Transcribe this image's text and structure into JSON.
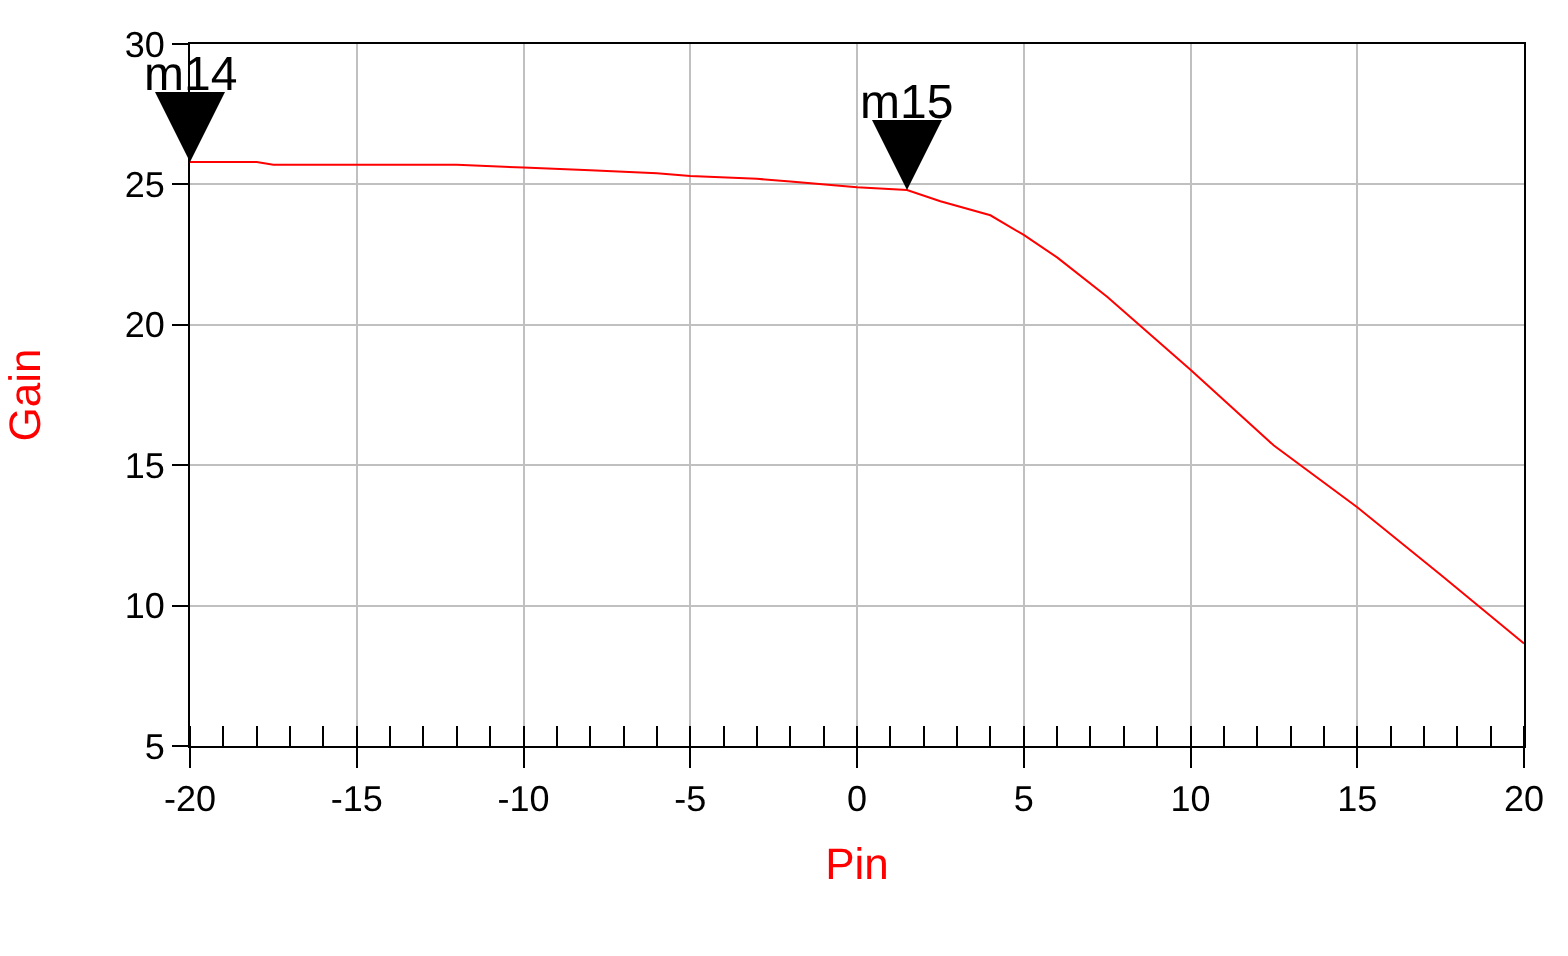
{
  "chart_data": {
    "type": "line",
    "xlabel": "Pin",
    "ylabel": "Gain",
    "x": [
      -20,
      -18,
      -17.5,
      -15,
      -12,
      -10,
      -8,
      -6,
      -5,
      -3,
      -2,
      0,
      1.5,
      2.5,
      4,
      5,
      6,
      7.5,
      10,
      12.5,
      15,
      17.5,
      20
    ],
    "series": [
      {
        "color": "#ff0000",
        "values": [
          25.8,
          25.8,
          25.7,
          25.7,
          25.7,
          25.6,
          25.5,
          25.4,
          25.3,
          25.2,
          25.1,
          24.9,
          24.8,
          24.4,
          23.9,
          23.2,
          22.4,
          21.0,
          18.4,
          15.7,
          13.5,
          11.1,
          8.65
        ]
      }
    ],
    "annotations": [
      {
        "text": "m14",
        "x": -20,
        "y": 25.8
      },
      {
        "text": "m15",
        "x": 1.5,
        "y": 24.8
      }
    ],
    "xlim": [
      -20,
      20
    ],
    "xticks": [
      -20,
      -15,
      -10,
      -5,
      0,
      5,
      10,
      15,
      20
    ],
    "ylim": [
      5,
      30
    ],
    "yticks": [
      5,
      10,
      15,
      20,
      25,
      30
    ],
    "grid": true,
    "marker": "none",
    "line_style": "solid"
  }
}
